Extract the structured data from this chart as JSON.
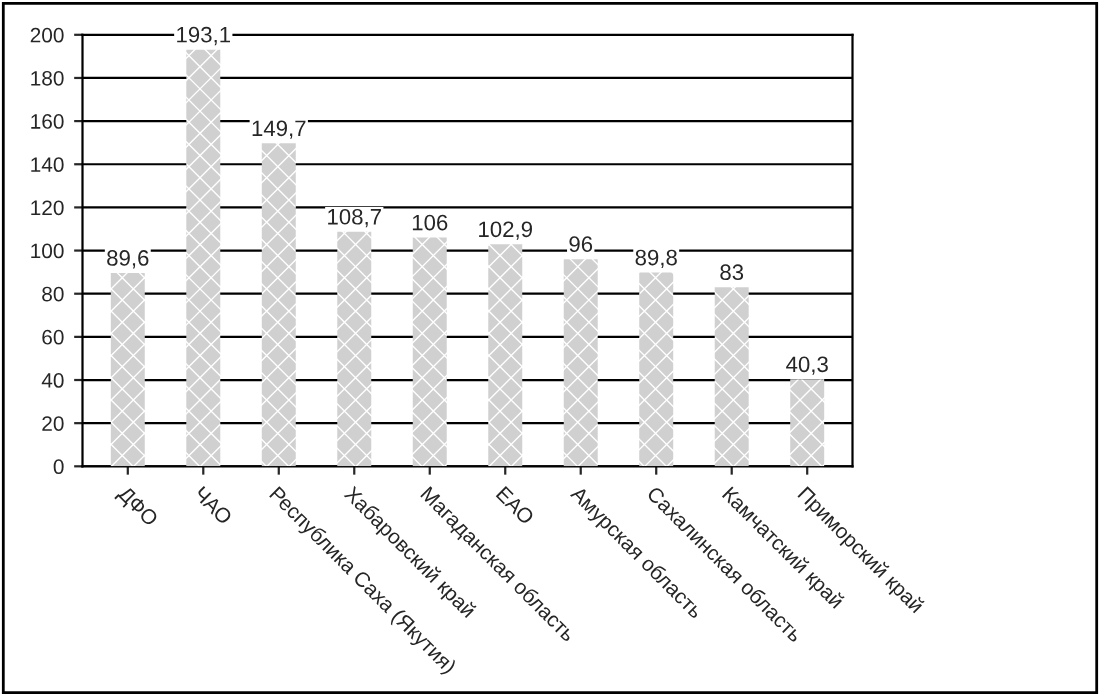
{
  "chart_data": {
    "type": "bar",
    "categories": [
      "ДФО",
      "ЧАО",
      "Республика Саха (Якутия)",
      "Хабаровский край",
      "Магаданская область",
      "ЕАО",
      "Амурская область",
      "Сахалинская область",
      "Камчатский край",
      "Приморский край"
    ],
    "values": [
      89.6,
      193.1,
      149.7,
      108.7,
      106,
      102.9,
      96,
      89.8,
      83,
      40.3
    ],
    "value_labels": [
      "89,6",
      "193,1",
      "149,7",
      "108,7",
      "106",
      "102,9",
      "96",
      "89,8",
      "83",
      "40,3"
    ],
    "color": "#d0d0d0",
    "ylim": [
      0,
      200
    ],
    "yticks": [
      0,
      20,
      40,
      60,
      80,
      100,
      120,
      140,
      160,
      180,
      200
    ],
    "grid": "y",
    "legend": false
  }
}
